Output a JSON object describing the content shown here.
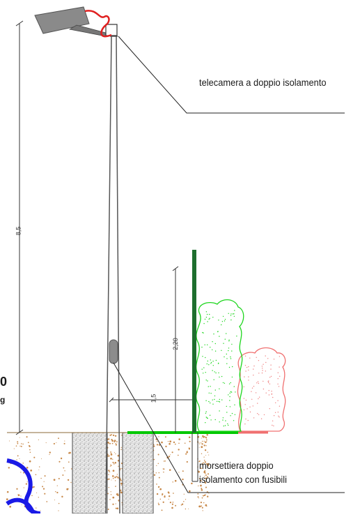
{
  "labels": {
    "camera": "telecamera a doppio isolamento",
    "terminal_line1": "morsettiera doppio",
    "terminal_line2": "isolamento con fusibili",
    "crop_top": "0",
    "crop_bottom": "g"
  },
  "dimensions": {
    "pole_height": "8,5",
    "fence_height": "2,20",
    "offset": "1,5"
  },
  "colors": {
    "pole": "#555555",
    "ground_line": "#00c800",
    "hedge_green": "#1dd61d",
    "hedge_red": "#f08080",
    "fence_post": "#1e6e2e",
    "cable": "#1a1ae6",
    "camera_body": "#8a8a8a",
    "camera_cable": "#e02020",
    "soil_dots": "#c8894a"
  }
}
